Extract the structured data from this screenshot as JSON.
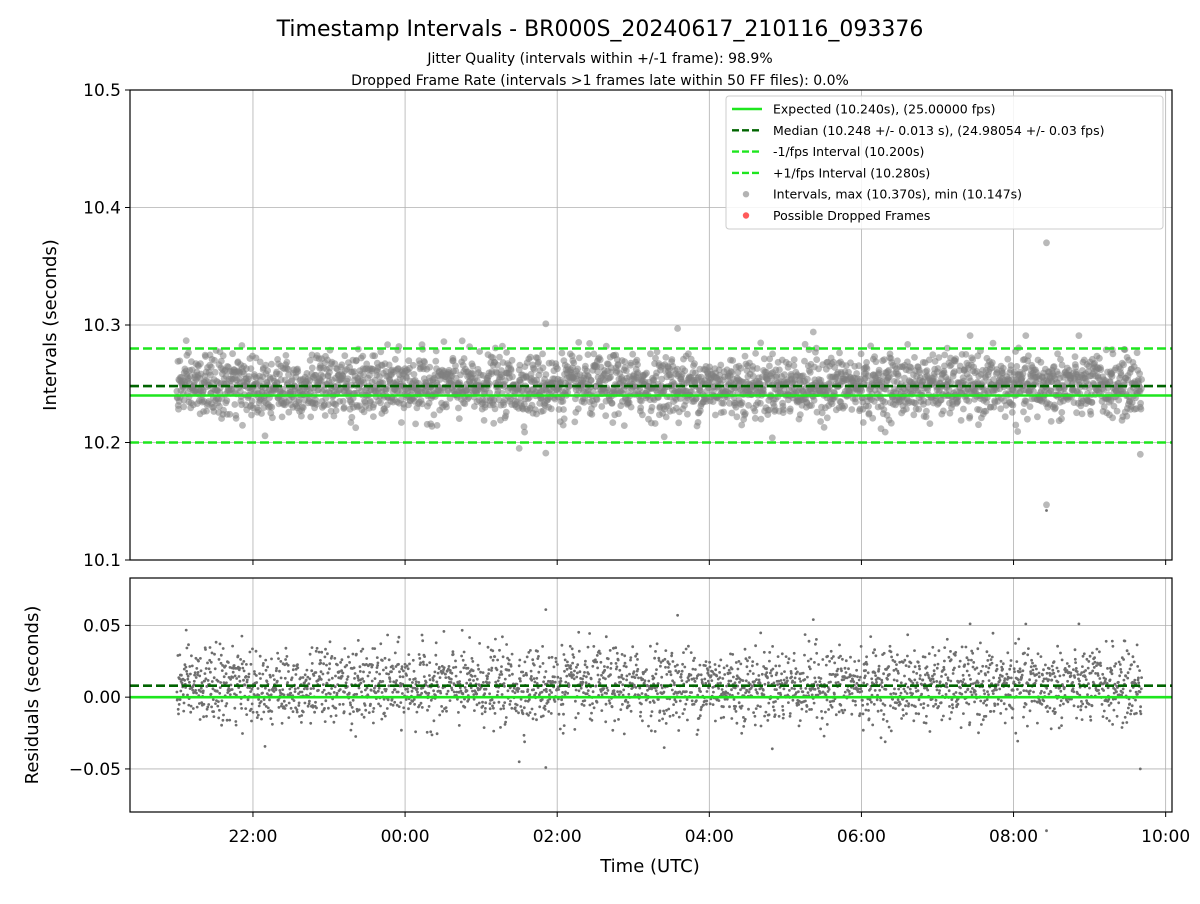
{
  "chart_data": {
    "type": "scatter",
    "title": "Timestamp Intervals - BR000S_20240617_210116_093376",
    "subtitle_lines": [
      "Jitter Quality (intervals within +/-1 frame): 98.9%",
      "Dropped Frame Rate (intervals >1 frames late within 50 FF files): 0.0%"
    ],
    "xlabel": "Time (UTC)",
    "x_time_range": [
      "20:23",
      "10:05"
    ],
    "x_ticks": [
      "22:00",
      "00:00",
      "02:00",
      "04:00",
      "06:00",
      "08:00",
      "10:00"
    ],
    "data_time_range": [
      "21:00",
      "09:41"
    ],
    "grid": true,
    "legend_position": "top-right",
    "colors": {
      "expected": "#1ee61e",
      "median": "#006400",
      "fps_bounds": "#1ee61e",
      "intervals": "#808080",
      "dropped": "#ff5a5a"
    },
    "panels": [
      {
        "name": "intervals",
        "ylabel": "Intervals (seconds)",
        "ylim": [
          10.1,
          10.5
        ],
        "y_ticks": [
          "10.1",
          "10.2",
          "10.3",
          "10.4",
          "10.5"
        ],
        "hlines": [
          {
            "name": "Expected",
            "y": 10.24,
            "style": "solid"
          },
          {
            "name": "Median",
            "y": 10.248,
            "style": "dashed"
          },
          {
            "name": "-1/fps Interval",
            "y": 10.2,
            "style": "dashed"
          },
          {
            "name": "+1/fps Interval",
            "y": 10.28,
            "style": "dashed"
          }
        ],
        "series": {
          "name": "Intervals",
          "center": 10.248,
          "spread": 0.013,
          "outliers": [
            {
              "t": "08:26",
              "y": 10.37
            },
            {
              "t": "08:26",
              "y": 10.147
            },
            {
              "t": "09:40",
              "y": 10.19
            },
            {
              "t": "01:51",
              "y": 10.301
            },
            {
              "t": "01:51",
              "y": 10.191
            },
            {
              "t": "03:35",
              "y": 10.297
            },
            {
              "t": "05:22",
              "y": 10.294
            },
            {
              "t": "01:30",
              "y": 10.195
            }
          ]
        },
        "dropped_frames": []
      },
      {
        "name": "residuals",
        "ylabel": "Residuals (seconds)",
        "ylim": [
          -0.08,
          0.083
        ],
        "y_ticks": [
          "−0.05",
          "0.00",
          "0.05"
        ],
        "y_tick_values": [
          -0.05,
          0.0,
          0.05
        ],
        "hlines": [
          {
            "name": "zero",
            "y": 0.0,
            "style": "solid"
          },
          {
            "name": "median offset",
            "y": 0.008,
            "style": "dashed"
          }
        ]
      }
    ],
    "legend": [
      {
        "label": "Expected (10.240s), (25.00000 fps)",
        "kind": "line-solid",
        "color": "#1ee61e"
      },
      {
        "label": "Median (10.248 +/- 0.013 s), (24.98054 +/- 0.03 fps)",
        "kind": "line-dashed",
        "color": "#006400"
      },
      {
        "label": "-1/fps Interval (10.200s)",
        "kind": "line-dashed",
        "color": "#1ee61e"
      },
      {
        "label": "+1/fps Interval (10.280s)",
        "kind": "line-dashed",
        "color": "#1ee61e"
      },
      {
        "label": "Intervals, max (10.370s), min (10.147s)",
        "kind": "marker",
        "color": "#808080"
      },
      {
        "label": "Possible Dropped Frames",
        "kind": "marker",
        "color": "#ff5a5a"
      }
    ]
  }
}
